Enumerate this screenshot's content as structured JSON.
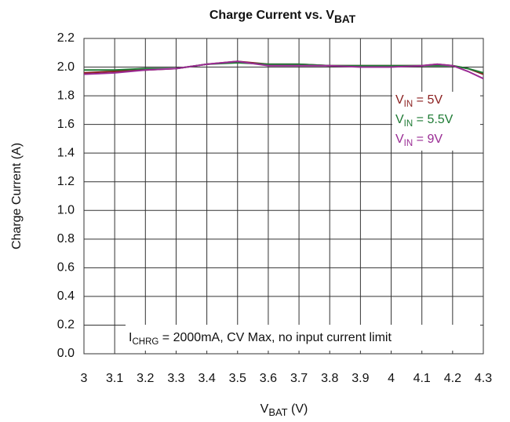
{
  "chart_data": {
    "type": "line",
    "title": {
      "text": "Charge Current vs. VBAT",
      "subscript": "BAT"
    },
    "xlabel": {
      "text": "VBAT (V)",
      "subscript": "BAT"
    },
    "ylabel": "Charge Current (A)",
    "annotation": {
      "text": "ICHRG = 2000mA, CV Max, no input current limit",
      "subscript": "CHRG"
    },
    "legend_subscript": "IN",
    "legend_position": "right",
    "grid": true,
    "x": [
      3.0,
      3.1,
      3.2,
      3.3,
      3.4,
      3.5,
      3.6,
      3.7,
      3.8,
      3.9,
      4.0,
      4.1,
      4.15,
      4.2,
      4.25,
      4.3
    ],
    "series": [
      {
        "name": "VIN = 5V",
        "color": "#8b1f1f",
        "values": [
          1.96,
          1.97,
          1.98,
          1.99,
          2.02,
          2.04,
          2.02,
          2.02,
          2.01,
          2.01,
          2.01,
          2.01,
          2.02,
          2.01,
          1.99,
          1.95
        ]
      },
      {
        "name": "VIN = 5.5V",
        "color": "#1e7b34",
        "values": [
          1.98,
          1.98,
          1.99,
          1.99,
          2.02,
          2.03,
          2.02,
          2.02,
          2.01,
          2.01,
          2.01,
          2.01,
          2.01,
          2.01,
          1.99,
          1.96
        ]
      },
      {
        "name": "VIN = 9V",
        "color": "#9a2b94",
        "values": [
          1.95,
          1.96,
          1.98,
          1.99,
          2.02,
          2.04,
          2.01,
          2.01,
          2.01,
          2.0,
          2.0,
          2.01,
          2.02,
          2.01,
          1.97,
          1.92
        ]
      }
    ],
    "xlim": [
      3,
      4.3
    ],
    "xticks": [
      3,
      3.1,
      3.2,
      3.3,
      3.4,
      3.5,
      3.6,
      3.7,
      3.8,
      3.9,
      4,
      4.1,
      4.2,
      4.3
    ],
    "ylim": [
      0,
      2.2
    ],
    "yticks": [
      {
        "value": 0,
        "label": "0.0"
      },
      0.2,
      0.4,
      0.6,
      0.8,
      {
        "value": 1,
        "label": "1.0"
      },
      1.2,
      1.4,
      1.6,
      1.8,
      {
        "value": 2,
        "label": "2.0"
      },
      2.2
    ]
  }
}
